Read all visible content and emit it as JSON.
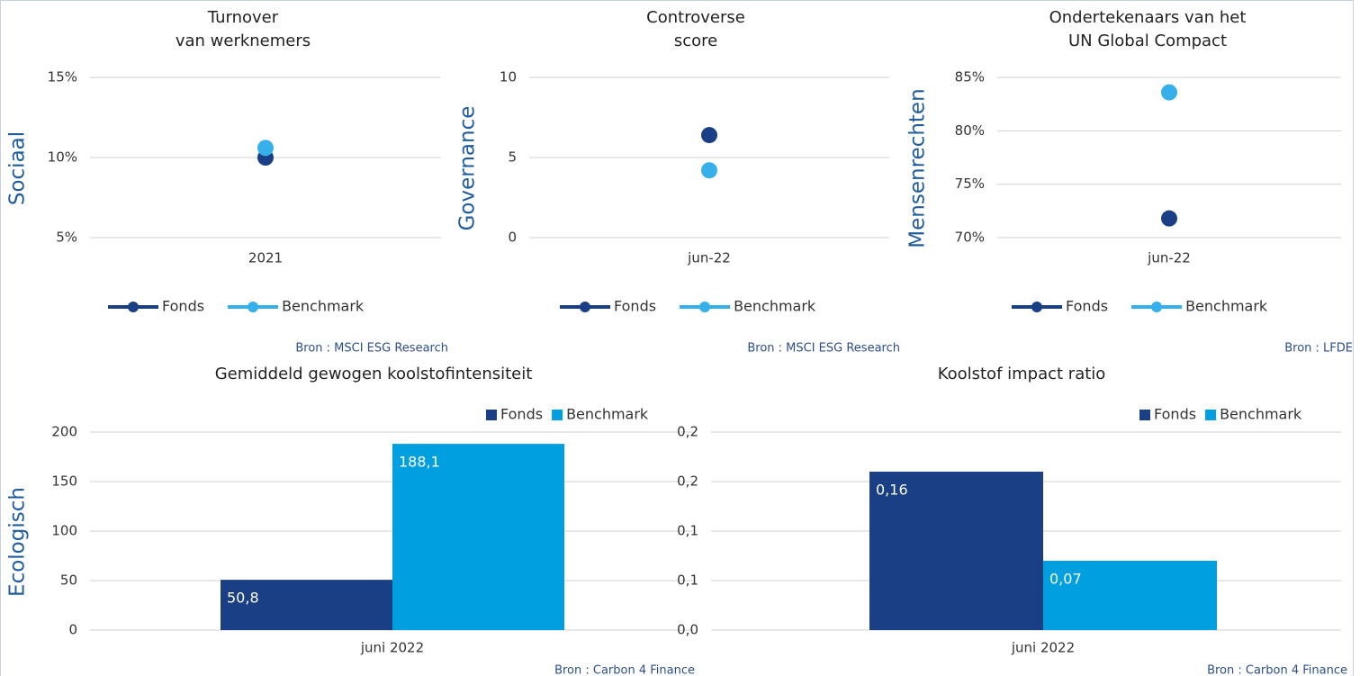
{
  "chart_data": [
    {
      "type": "line",
      "title": [
        "Turnover",
        "van werknemers"
      ],
      "row_label": "Sociaal",
      "categories": [
        "2021"
      ],
      "series": [
        {
          "name": "Fonds",
          "color": "#1a3f85",
          "values": [
            10
          ]
        },
        {
          "name": "Benchmark",
          "color": "#35b0ea",
          "values": [
            10.6
          ]
        }
      ],
      "ylim": [
        5,
        15
      ],
      "yticks": [
        {
          "value": 5,
          "label": "5%"
        },
        {
          "value": 10,
          "label": "10%"
        },
        {
          "value": 15,
          "label": "15%"
        }
      ],
      "grid": true,
      "legend": "bottom",
      "source": "Bron : MSCI ESG Research"
    },
    {
      "type": "line",
      "title": [
        "Controverse",
        "score"
      ],
      "row_label": "Governance",
      "categories": [
        "jun-22"
      ],
      "series": [
        {
          "name": "Fonds",
          "color": "#1a3f85",
          "values": [
            6.4
          ]
        },
        {
          "name": "Benchmark",
          "color": "#35b0ea",
          "values": [
            4.2
          ]
        }
      ],
      "ylim": [
        0,
        10
      ],
      "yticks": [
        0,
        5,
        10
      ],
      "grid": true,
      "legend": "bottom",
      "source": "Bron : MSCI ESG Research"
    },
    {
      "type": "line",
      "title": [
        "Ondertekenaars van het",
        "UN Global Compact"
      ],
      "row_label": "Mensenrechten",
      "categories": [
        "jun-22"
      ],
      "series": [
        {
          "name": "Fonds",
          "color": "#1a3f85",
          "values": [
            71.8
          ]
        },
        {
          "name": "Benchmark",
          "color": "#35b0ea",
          "values": [
            83.6
          ]
        }
      ],
      "ylim": [
        70,
        85
      ],
      "yticks": [
        {
          "value": 70,
          "label": "70%"
        },
        {
          "value": 75,
          "label": "75%"
        },
        {
          "value": 80,
          "label": "80%"
        },
        {
          "value": 85,
          "label": "85%"
        }
      ],
      "grid": true,
      "legend": "bottom",
      "source": "Bron : LFDE"
    },
    {
      "type": "bar",
      "title": [
        "Gemiddeld gewogen koolstofintensiteit"
      ],
      "row_label": "Ecologisch",
      "categories": [
        "juni 2022"
      ],
      "series": [
        {
          "name": "Fonds",
          "color": "#1a3f85",
          "values": [
            50.8
          ],
          "value_labels": [
            "50,8"
          ]
        },
        {
          "name": "Benchmark",
          "color": "#009fe0",
          "values": [
            188.1
          ],
          "value_labels": [
            "188,1"
          ]
        }
      ],
      "ylim": [
        0,
        200
      ],
      "yticks": [
        0,
        50,
        100,
        150,
        200
      ],
      "grid": true,
      "legend": "top-right",
      "source": "Bron : Carbon 4 Finance"
    },
    {
      "type": "bar",
      "title": [
        "Koolstof impact ratio"
      ],
      "categories": [
        "juni 2022"
      ],
      "series": [
        {
          "name": "Fonds",
          "color": "#1a3f85",
          "values": [
            0.16
          ],
          "value_labels": [
            "0,16"
          ]
        },
        {
          "name": "Benchmark",
          "color": "#009fe0",
          "values": [
            0.07
          ],
          "value_labels": [
            "0,07"
          ]
        }
      ],
      "ylim": [
        0,
        0.2
      ],
      "yticks": [
        {
          "value": 0,
          "label": "0,0"
        },
        {
          "value": 0.05,
          "label": "0,1"
        },
        {
          "value": 0.1,
          "label": "0,1"
        },
        {
          "value": 0.15,
          "label": "0,2"
        },
        {
          "value": 0.2,
          "label": "0,2"
        }
      ],
      "grid": true,
      "legend": "top-right",
      "source": "Bron : Carbon 4 Finance"
    }
  ]
}
